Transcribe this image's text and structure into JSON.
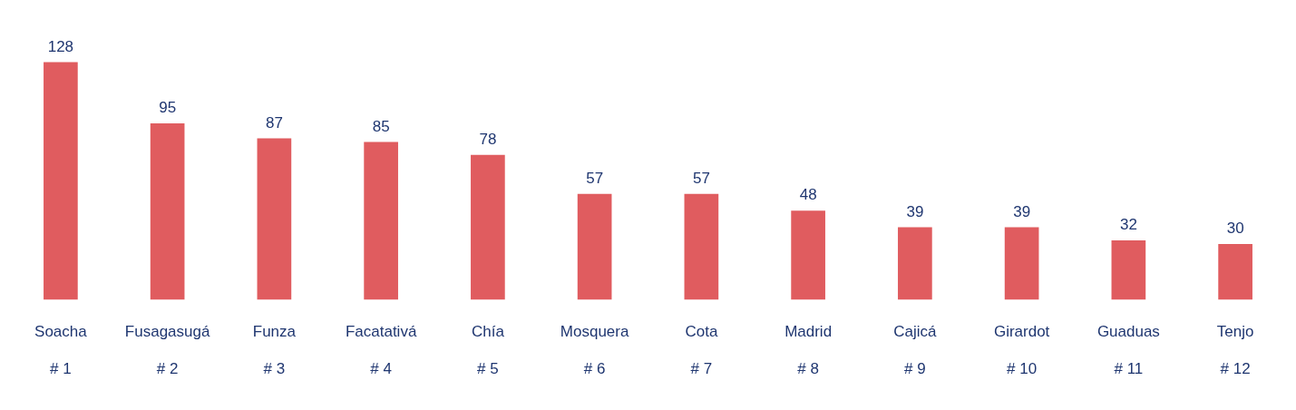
{
  "chart_data": {
    "type": "bar",
    "categories": [
      "Soacha\n# 1",
      "Fusagasugá\n# 2",
      "Funza\n# 3",
      "Facatativá\n# 4",
      "Chía\n# 5",
      "Mosquera\n# 6",
      "Cota\n# 7",
      "Madrid\n# 8",
      "Cajicá\n# 9",
      "Girardot\n# 10",
      "Guaduas\n# 11",
      "Tenjo\n# 12"
    ],
    "values": [
      128,
      95,
      87,
      85,
      78,
      57,
      57,
      48,
      39,
      39,
      32,
      30
    ],
    "color": "#e05c5f",
    "data_labels": true,
    "grid": false,
    "legend": false
  }
}
